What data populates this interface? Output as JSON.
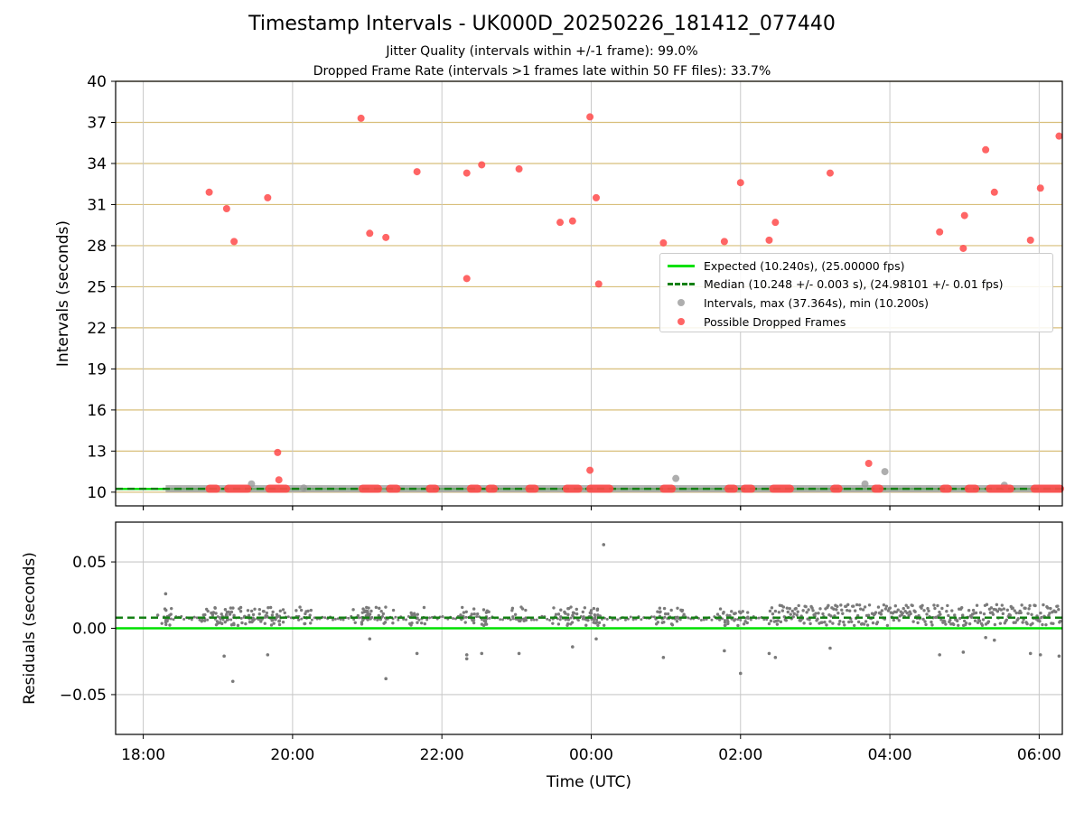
{
  "title": "Timestamp Intervals - UK000D_20250226_181412_077440",
  "subtitle_1": "Jitter Quality (intervals within +/-1 frame): 99.0%",
  "subtitle_2": "Dropped Frame Rate (intervals >1 frames late within 50 FF files): 33.7%",
  "colors": {
    "expected": "#00e000",
    "median": "#148014",
    "intervals": "#9a9a9a",
    "dropped": "#ff4a4a",
    "hgrid": "#d8bf7a",
    "vgrid": "#c8c8c8",
    "residual_points": "#7a7a7a"
  },
  "legend": {
    "expected": "Expected (10.240s), (25.00000 fps)",
    "median": "Median (10.248 +/- 0.003 s), (24.98101 +/- 0.01 fps)",
    "intervals": "Intervals, max (37.364s), min (10.200s)",
    "dropped": "Possible Dropped Frames"
  },
  "chart_data": [
    {
      "type": "scatter",
      "ylabel": "Intervals (seconds)",
      "ylim": [
        9,
        40
      ],
      "yticks": [
        10,
        13,
        16,
        19,
        22,
        25,
        28,
        31,
        34,
        37,
        40
      ],
      "xlim_hours": [
        17.63,
        30.31
      ],
      "xticks": [
        "18:00",
        "20:00",
        "22:00",
        "00:00",
        "02:00",
        "04:00",
        "06:00"
      ],
      "grid": "on",
      "legend_position": "center-right",
      "expected_interval": 10.24,
      "median_interval": 10.248,
      "series": [
        {
          "name": "Possible Dropped Frames",
          "points": [
            [
              "18:53",
              31.9
            ],
            [
              "19:07",
              30.7
            ],
            [
              "19:13",
              28.3
            ],
            [
              "19:40",
              31.5
            ],
            [
              "19:48",
              12.9
            ],
            [
              "19:49",
              10.9
            ],
            [
              "20:55",
              37.3
            ],
            [
              "21:02",
              28.9
            ],
            [
              "21:15",
              28.6
            ],
            [
              "21:40",
              33.4
            ],
            [
              "22:20",
              33.3
            ],
            [
              "22:20",
              25.6
            ],
            [
              "22:32",
              33.9
            ],
            [
              "23:02",
              33.6
            ],
            [
              "23:35",
              29.7
            ],
            [
              "23:45",
              29.8
            ],
            [
              "23:59",
              37.4
            ],
            [
              "23:59",
              11.6
            ],
            [
              "00:04",
              31.5
            ],
            [
              "00:06",
              25.2
            ],
            [
              "00:58",
              28.2
            ],
            [
              "01:47",
              28.3
            ],
            [
              "02:00",
              32.6
            ],
            [
              "02:23",
              28.4
            ],
            [
              "02:28",
              29.7
            ],
            [
              "03:12",
              33.3
            ],
            [
              "03:43",
              12.1
            ],
            [
              "04:40",
              29.0
            ],
            [
              "04:59",
              27.8
            ],
            [
              "05:00",
              30.2
            ],
            [
              "05:17",
              35.0
            ],
            [
              "05:24",
              31.9
            ],
            [
              "05:53",
              28.4
            ],
            [
              "06:01",
              32.2
            ],
            [
              "06:16",
              36.0
            ]
          ]
        },
        {
          "name": "Intervals, max (37.364s), min (10.200s)",
          "points": [
            [
              "19:27",
              10.6
            ],
            [
              "20:09",
              10.3
            ],
            [
              "01:08",
              11.0
            ],
            [
              "03:40",
              10.6
            ],
            [
              "03:56",
              11.5
            ],
            [
              "05:32",
              10.5
            ]
          ],
          "baseline_value": 10.25
        },
        {
          "name": "Possible Dropped Frames (baseline clusters)",
          "baseline_value": 10.25,
          "ranges": [
            [
              "18:50",
              "19:02"
            ],
            [
              "19:05",
              "19:27"
            ],
            [
              "19:38",
              "19:58"
            ],
            [
              "20:53",
              "21:12"
            ],
            [
              "21:15",
              "21:27"
            ],
            [
              "21:47",
              "21:58"
            ],
            [
              "22:20",
              "22:32"
            ],
            [
              "22:35",
              "22:45"
            ],
            [
              "23:07",
              "23:18"
            ],
            [
              "23:37",
              "23:53"
            ],
            [
              "23:56",
              "00:18"
            ],
            [
              "00:55",
              "01:08"
            ],
            [
              "01:47",
              "01:58"
            ],
            [
              "02:00",
              "02:12"
            ],
            [
              "02:23",
              "02:43"
            ],
            [
              "03:12",
              "03:22"
            ],
            [
              "03:45",
              "03:55"
            ],
            [
              "04:40",
              "04:50"
            ],
            [
              "05:00",
              "05:12"
            ],
            [
              "05:17",
              "05:40"
            ],
            [
              "05:53",
              "06:20"
            ]
          ]
        }
      ]
    },
    {
      "type": "scatter",
      "ylabel": "Residuals (seconds)",
      "xlabel": "Time (UTC)",
      "ylim": [
        -0.08,
        0.08
      ],
      "yticks": [
        -0.05,
        0.0,
        0.05
      ],
      "ytick_labels": [
        "−0.05",
        "0.00",
        "0.05"
      ],
      "xlim_hours": [
        17.63,
        30.31
      ],
      "xticks": [
        "18:00",
        "20:00",
        "22:00",
        "00:00",
        "02:00",
        "04:00",
        "06:00"
      ],
      "grid": "on",
      "expected_residual": 0.0,
      "median_residual": 0.008,
      "series": [
        {
          "name": "Residuals",
          "outliers": [
            [
              "18:18",
              0.026
            ],
            [
              "19:05",
              -0.021
            ],
            [
              "19:12",
              -0.04
            ],
            [
              "19:40",
              -0.02
            ],
            [
              "21:02",
              -0.008
            ],
            [
              "21:15",
              -0.038
            ],
            [
              "21:40",
              -0.019
            ],
            [
              "22:20",
              -0.023
            ],
            [
              "22:20",
              -0.02
            ],
            [
              "22:32",
              -0.019
            ],
            [
              "23:02",
              -0.019
            ],
            [
              "23:45",
              -0.014
            ],
            [
              "00:04",
              -0.008
            ],
            [
              "00:10",
              0.063
            ],
            [
              "00:58",
              -0.022
            ],
            [
              "01:47",
              -0.017
            ],
            [
              "02:00",
              -0.034
            ],
            [
              "02:23",
              -0.019
            ],
            [
              "02:28",
              -0.022
            ],
            [
              "03:12",
              -0.015
            ],
            [
              "04:40",
              -0.02
            ],
            [
              "04:59",
              -0.018
            ],
            [
              "05:17",
              -0.007
            ],
            [
              "05:24",
              -0.009
            ],
            [
              "05:53",
              -0.019
            ],
            [
              "06:01",
              -0.02
            ],
            [
              "06:16",
              -0.021
            ]
          ],
          "dense_band": {
            "from": "02:23",
            "to": "06:20",
            "min": 0.002,
            "max": 0.018
          }
        }
      ]
    }
  ]
}
